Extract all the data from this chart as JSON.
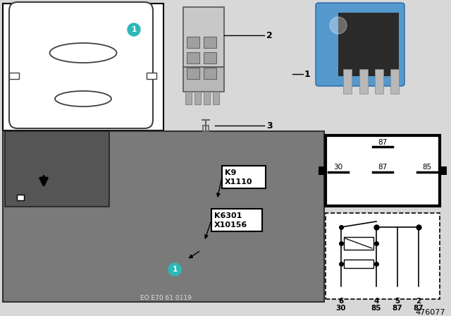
{
  "bg_color": "#d8d8d8",
  "white": "#ffffff",
  "black": "#000000",
  "teal": "#2eb8b8",
  "blue_relay": "#5599cc",
  "blue_relay2": "#4488bb",
  "dark_photo": "#7a7a7a",
  "inner_photo": "#555555",
  "gray_component": "#b0b0b0",
  "footer_code": "EO E70 61 0119",
  "part_number": "476077",
  "pin_labels_bottom_num": [
    "6",
    "4",
    "5",
    "2"
  ],
  "pin_labels_bottom_name": [
    "30",
    "85",
    "87",
    "87"
  ]
}
